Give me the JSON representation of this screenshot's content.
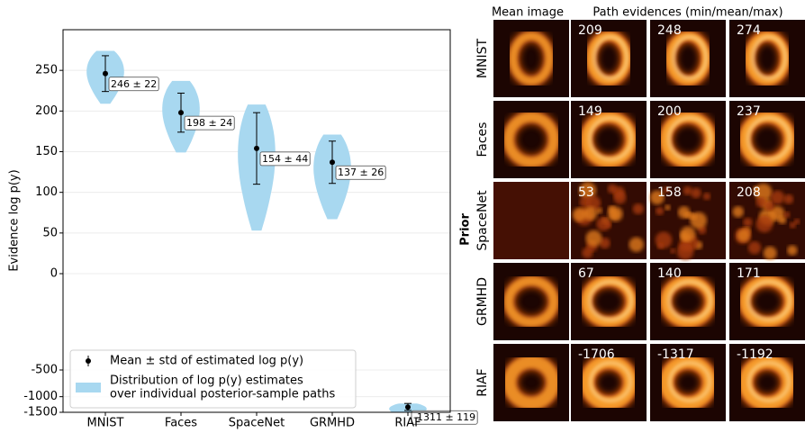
{
  "chart_data": {
    "type": "violin",
    "ylabel": "Evidence log p(y)",
    "categories": [
      "MNIST",
      "Faces",
      "SpaceNet",
      "GRMHD",
      "RIAF"
    ],
    "values": [
      246,
      198,
      154,
      137,
      -1311
    ],
    "errors": [
      22,
      24,
      44,
      26,
      119
    ],
    "value_labels": [
      "246 ± 22",
      "198 ± 24",
      "154 ± 44",
      "137 ± 26",
      "-1311 ± 119"
    ],
    "ylim": [
      -1500,
      300
    ],
    "yticks": [
      250,
      200,
      150,
      100,
      50,
      0,
      -500,
      -1000,
      -1500
    ],
    "yscale": "linear above 0, log below",
    "color": "#a8d8f0",
    "marker_color": "#000000",
    "grid": true,
    "legend": {
      "position": "lower left",
      "entries": [
        {
          "label_lines": [
            "Mean ± std of estimated log p(y)"
          ]
        },
        {
          "label_lines": [
            "Distribution of log p(y) estimates",
            "over individual posterior-sample paths"
          ]
        }
      ]
    }
  },
  "image_grid": {
    "headers": [
      "Mean image",
      "Path evidences (min/mean/max)"
    ],
    "group_label": "Prior",
    "rows": [
      {
        "name": "MNIST",
        "evidences": [
          209,
          248,
          274
        ]
      },
      {
        "name": "Faces",
        "evidences": [
          149,
          200,
          237
        ]
      },
      {
        "name": "SpaceNet",
        "evidences": [
          53,
          158,
          208
        ]
      },
      {
        "name": "GRMHD",
        "evidences": [
          67,
          140,
          171
        ]
      },
      {
        "name": "RIAF",
        "evidences": [
          -1706,
          -1317,
          -1192
        ]
      }
    ]
  }
}
